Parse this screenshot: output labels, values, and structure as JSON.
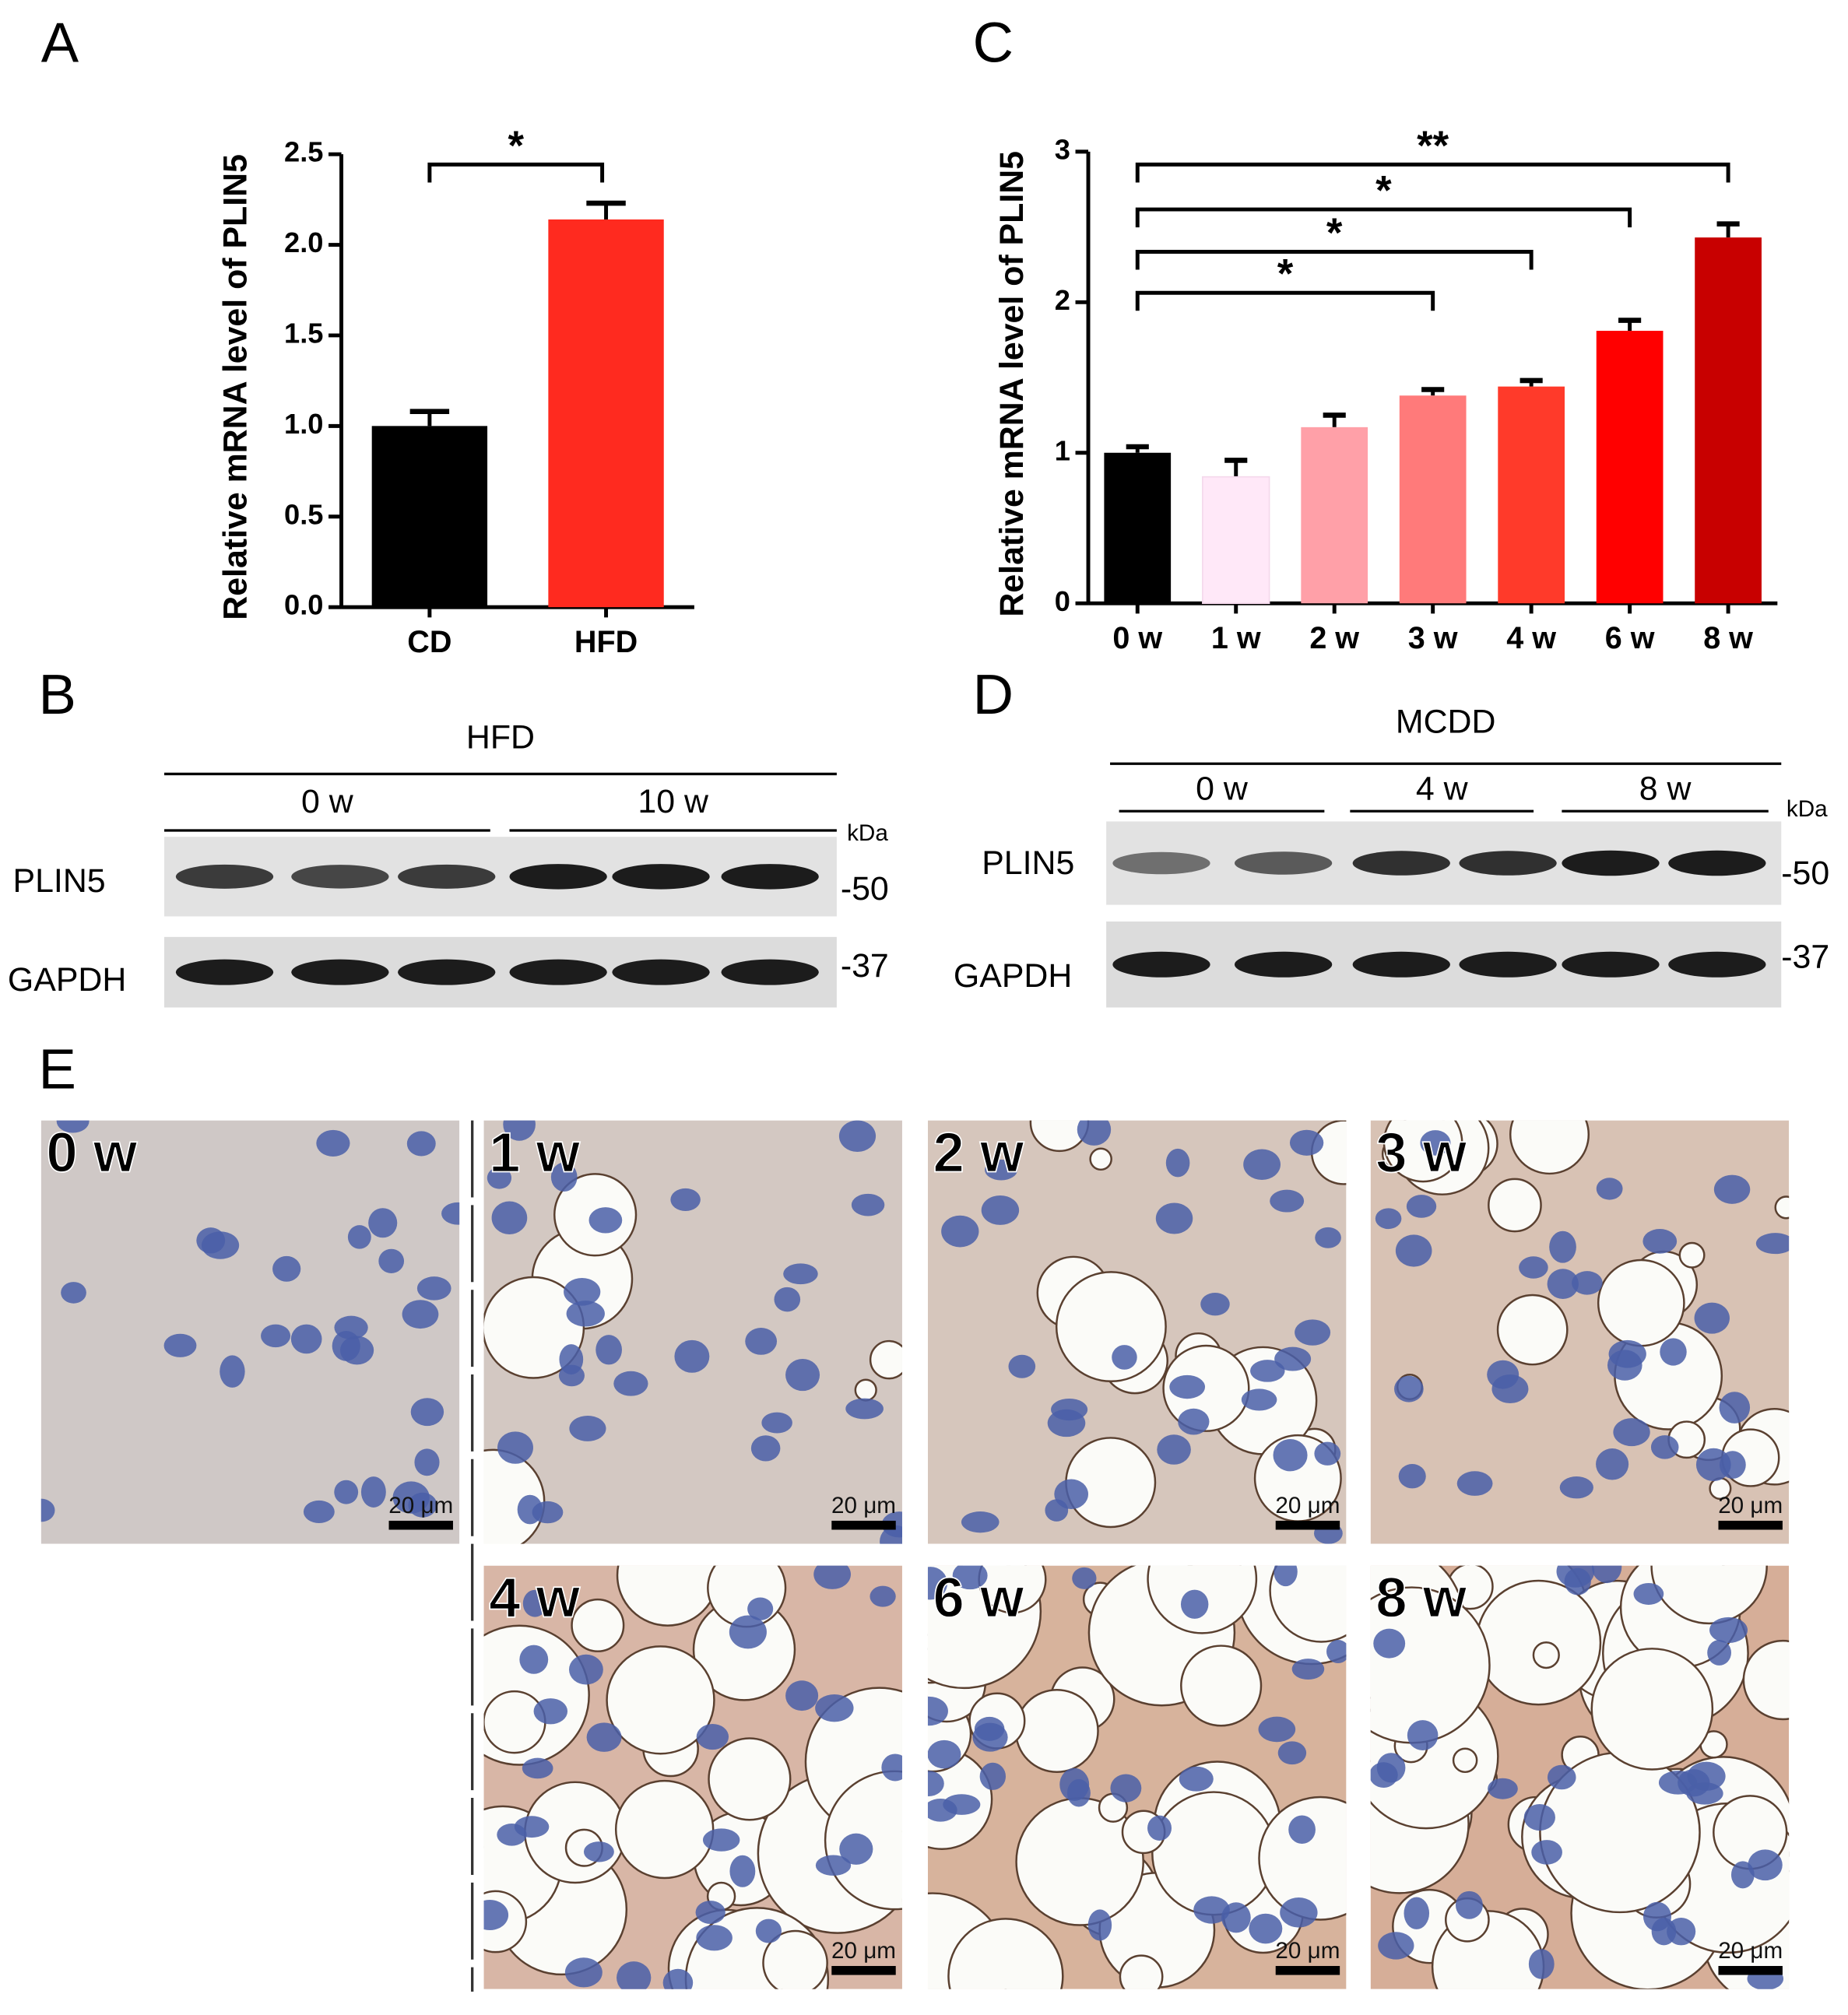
{
  "panel_labels": [
    "A",
    "B",
    "C",
    "D",
    "E"
  ],
  "chart_data": [
    {
      "type": "bar",
      "ylabel": "Relative mRNA level of PLIN5",
      "categories": [
        "CD",
        "HFD"
      ],
      "values": [
        1.0,
        2.14
      ],
      "errors": [
        0.08,
        0.09
      ],
      "colors": [
        "#000000",
        "#ff2a1f"
      ],
      "ylim": [
        0,
        2.5
      ],
      "yticks": [
        {
          "value": 0,
          "label": "0.0"
        },
        0.5,
        {
          "value": 1,
          "label": "1.0"
        },
        1.5,
        {
          "value": 2,
          "label": "2.0"
        },
        2.5
      ],
      "annotations": [
        {
          "text": "*",
          "from": "CD",
          "to": "HFD"
        }
      ]
    },
    {
      "type": "bar",
      "ylabel": "Relative mRNA level of PLIN5",
      "categories": [
        "0 w",
        "1 w",
        "2 w",
        "3 w",
        "4 w",
        "6 w",
        "8 w"
      ],
      "values": [
        1.0,
        0.84,
        1.17,
        1.38,
        1.44,
        1.81,
        2.43
      ],
      "errors": [
        0.04,
        0.11,
        0.08,
        0.04,
        0.04,
        0.07,
        0.09
      ],
      "colors": [
        "#000000",
        "#ffe8f8",
        "#ffa0a8",
        "#ff7a7a",
        "#ff3a2a",
        "#ff0000",
        "#c80000"
      ],
      "ylim": [
        0,
        3
      ],
      "yticks": [
        0,
        1,
        2,
        3
      ],
      "annotations": [
        {
          "text": "**",
          "from": "0 w",
          "to": "8 w"
        },
        {
          "text": "*",
          "from": "0 w",
          "to": "6 w"
        },
        {
          "text": "*",
          "from": "0 w",
          "to": "4 w"
        },
        {
          "text": "*",
          "from": "0 w",
          "to": "3 w"
        }
      ]
    }
  ],
  "blots": [
    {
      "group": "HFD",
      "subgroups": [
        "0 w",
        "10 w"
      ],
      "rows": [
        "PLIN5",
        "GAPDH"
      ],
      "unit": "kDa",
      "markers": [
        "-50",
        "-37"
      ]
    },
    {
      "group": "MCDD",
      "subgroups": [
        "0 w",
        "4 w",
        "8 w"
      ],
      "rows": [
        "PLIN5",
        "GAPDH"
      ],
      "unit": "kDa",
      "markers": [
        "-50",
        "-37"
      ]
    }
  ],
  "histology": {
    "panels": [
      "0 w",
      "1 w",
      "2 w",
      "3 w",
      "4 w",
      "6 w",
      "8 w"
    ],
    "scale_bar": "20 μm"
  }
}
